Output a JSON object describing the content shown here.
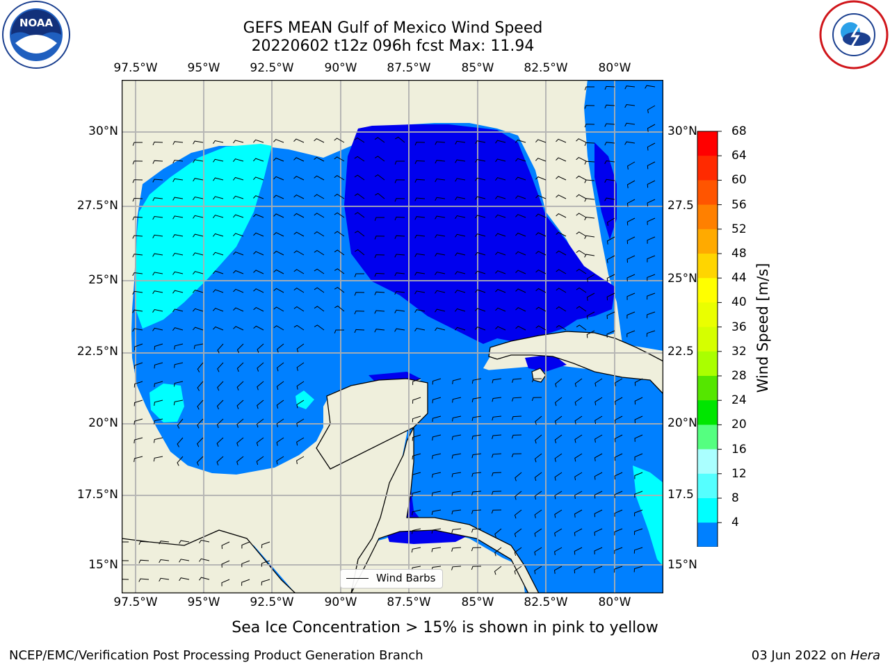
{
  "title_line1": "GEFS MEAN Gulf of Mexico Wind Speed",
  "title_line2": "20220602 t12z 096h fcst   Max: 11.94",
  "lon_labels": [
    "97.5°W",
    "95°W",
    "92.5°W",
    "90°W",
    "87.5°W",
    "85°W",
    "82.5°W",
    "80°W"
  ],
  "lat_labels_left": [
    "30°N",
    "27.5°N",
    "25°N",
    "22.5°N",
    "20°N",
    "17.5°N",
    "15°N"
  ],
  "lat_labels_right": [
    "30°N",
    "27.5",
    "25°N",
    "22.5",
    "20°N",
    "17.5",
    "15°N"
  ],
  "colorbar": {
    "label": "Wind Speed [m/s]",
    "ticks": [
      "68",
      "64",
      "60",
      "56",
      "52",
      "48",
      "44",
      "40",
      "36",
      "32",
      "28",
      "24",
      "20",
      "16",
      "12",
      "8",
      "4"
    ],
    "colors": [
      "#ff0000",
      "#ff2a00",
      "#ff5500",
      "#ff8000",
      "#ffaa00",
      "#ffd500",
      "#ffff00",
      "#eaff00",
      "#d5ff00",
      "#aaff00",
      "#55e600",
      "#00e600",
      "#55ff80",
      "#aaffff",
      "#55ffff",
      "#00ffff",
      "#0080ff"
    ],
    "under_color": "#0000ee"
  },
  "legend": {
    "label": "Wind Barbs"
  },
  "footer_left": "NCEP/EMC/Verification Post Processing Product Generation Branch",
  "footer_right_date": "03 Jun 2022 on ",
  "footer_right_host": "Hera",
  "caption": "Sea Ice Concentration > 15% is shown in pink to yellow",
  "colors": {
    "land": "#efefdc",
    "sea_low": "#0000ee",
    "sea_mid": "#0080ff",
    "sea_high": "#00ffff"
  }
}
